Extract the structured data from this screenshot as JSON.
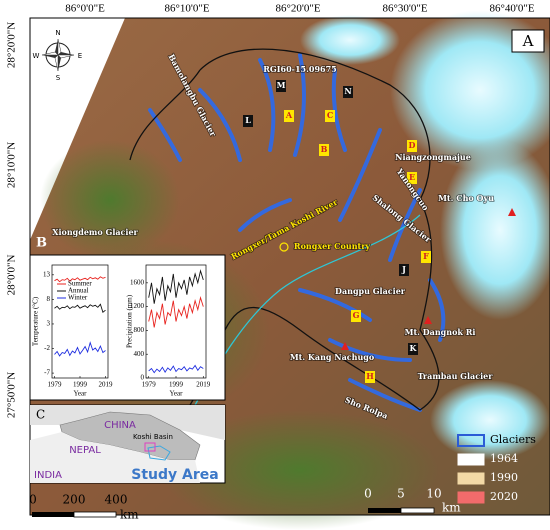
{
  "panel_label": "A",
  "lon_labels": [
    "86°0'0\"E",
    "86°10'0\"E",
    "86°20'0\"E",
    "86°30'0\"E",
    "86°40'0\"E"
  ],
  "lat_labels": [
    "28°20'0\"N",
    "28°10'0\"N",
    "28°0'0\"N",
    "27°50'0\"N"
  ],
  "compass": [
    "N",
    "E",
    "S",
    "W"
  ],
  "glacier_id": "RGI60-15.09675",
  "site_labels": [
    "A",
    "B",
    "C",
    "D",
    "E",
    "F",
    "G",
    "H",
    "J",
    "K",
    "L",
    "M",
    "N"
  ],
  "place_labels": [
    "Bamolangbu Glacier",
    "Niangzongmajue",
    "Yanongcuo",
    "Shalong Glacier",
    "Mt. Cho Oyu",
    "Xiongdemo Glacier",
    "Rongxer Country",
    "Rongxer/Tama Koshi River",
    "Dangpu Glacier",
    "Mt. Dangnok Ri",
    "Mt. Kang Nachugo",
    "Trambau Glacier",
    "Sho Rolpa"
  ],
  "legend": [
    {
      "label": "Glaciers",
      "color": "#2b5cd6"
    },
    {
      "label": "1964",
      "color": "#ffffff"
    },
    {
      "label": "1990",
      "color": "#f3d9a6"
    },
    {
      "label": "2020",
      "color": "#f26b6b"
    }
  ],
  "scale": {
    "labels": [
      "0",
      "5",
      "10"
    ],
    "unit": "km"
  },
  "inset_b": {
    "label": "B",
    "chart_data": [
      {
        "type": "line",
        "ylabel": "Temperature (°C)",
        "xlabel": "Year",
        "x": [
          1979,
          1981,
          1983,
          1985,
          1987,
          1989,
          1991,
          1993,
          1995,
          1997,
          1999,
          2001,
          2003,
          2005,
          2007,
          2009,
          2011,
          2013,
          2015,
          2017,
          2019
        ],
        "xlim": [
          1977,
          2021
        ],
        "xticks": [
          1979,
          1999,
          2019
        ],
        "ylim": [
          -8,
          15
        ],
        "yticks": [
          -7,
          -2,
          3,
          8,
          13
        ],
        "series": [
          {
            "name": "Summer",
            "color": "#e8231f",
            "values": [
              11.8,
              12.1,
              11.6,
              12.0,
              11.9,
              12.3,
              11.7,
              12.2,
              12.0,
              12.4,
              11.9,
              12.1,
              12.3,
              12.0,
              12.5,
              12.2,
              12.4,
              12.1,
              12.6,
              12.3,
              12.5
            ]
          },
          {
            "name": "Annual",
            "color": "#111111",
            "values": [
              6.2,
              6.6,
              6.0,
              6.4,
              6.3,
              6.7,
              6.1,
              6.5,
              6.4,
              6.8,
              6.2,
              6.5,
              6.7,
              6.3,
              6.9,
              6.6,
              6.8,
              6.4,
              7.0,
              5.4,
              5.8
            ]
          },
          {
            "name": "Winter",
            "color": "#1f2ee0",
            "values": [
              -3.2,
              -2.6,
              -3.5,
              -2.8,
              -3.0,
              -2.2,
              -3.4,
              -2.5,
              -2.9,
              -1.8,
              -3.1,
              -2.4,
              -1.6,
              -2.7,
              -0.8,
              -2.3,
              -1.9,
              -2.6,
              -1.5,
              -2.8,
              -2.4
            ]
          }
        ]
      },
      {
        "type": "line",
        "ylabel": "Precipitation (mm)",
        "xlabel": "Year",
        "x": [
          1979,
          1981,
          1983,
          1985,
          1987,
          1989,
          1991,
          1993,
          1995,
          1997,
          1999,
          2001,
          2003,
          2005,
          2007,
          2009,
          2011,
          2013,
          2015,
          2017,
          2019
        ],
        "xlim": [
          1977,
          2021
        ],
        "xticks": [
          1979,
          1999,
          2019
        ],
        "ylim": [
          0,
          1900
        ],
        "yticks": [
          0,
          400,
          800,
          1200,
          1600
        ],
        "series": [
          {
            "color": "#111111",
            "values": [
              1350,
              1600,
              1250,
              1500,
              1400,
              1700,
              1300,
              1550,
              1450,
              1750,
              1350,
              1600,
              1500,
              1650,
              1400,
              1700,
              1550,
              1750,
              1600,
              1800,
              1650
            ]
          },
          {
            "color": "#e8231f",
            "values": [
              950,
              1150,
              850,
              1100,
              1000,
              1250,
              900,
              1100,
              1050,
              1300,
              950,
              1150,
              1050,
              1200,
              1000,
              1250,
              1100,
              1300,
              1150,
              1350,
              1200
            ]
          },
          {
            "color": "#1f2ee0",
            "values": [
              120,
              160,
              90,
              150,
              110,
              180,
              100,
              170,
              130,
              200,
              110,
              160,
              140,
              190,
              120,
              170,
              150,
              210,
              130,
              190,
              160
            ]
          }
        ]
      }
    ]
  },
  "inset_c": {
    "label": "C",
    "labels": [
      "CHINA",
      "NEPAL",
      "INDIA",
      "Koshi Basin",
      "Study Area"
    ],
    "scale_labels": [
      "0",
      "200",
      "400"
    ],
    "unit": "km"
  }
}
